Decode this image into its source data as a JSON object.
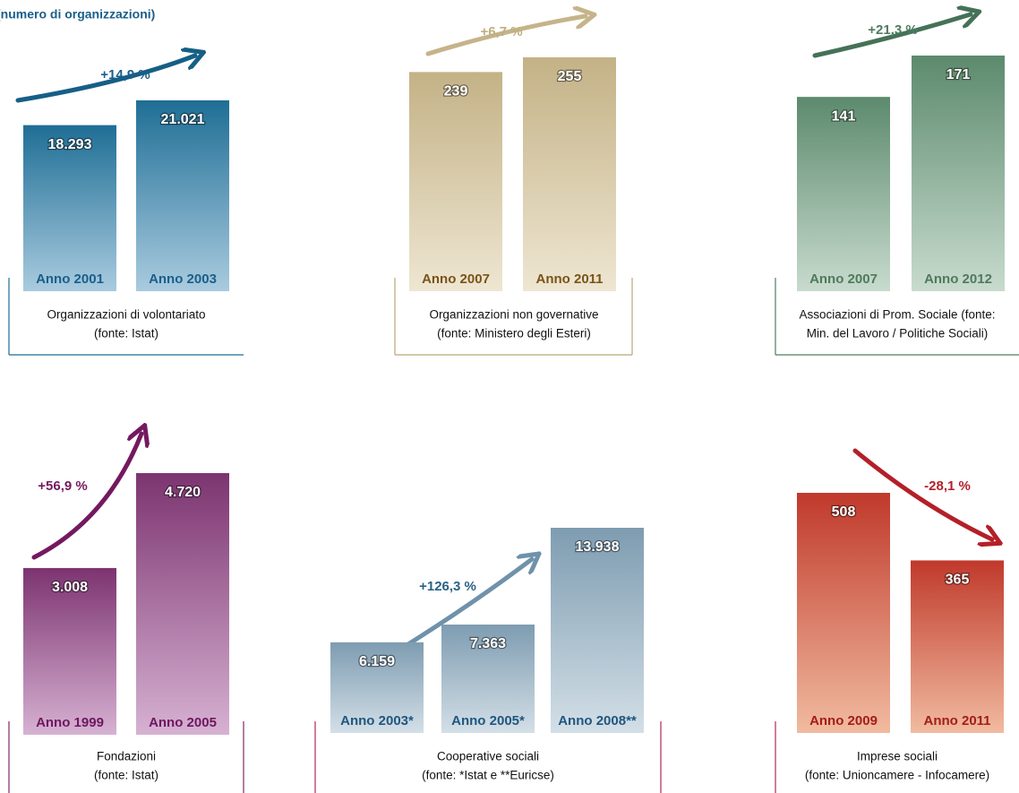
{
  "subtitle": "(numero di organizzazioni)",
  "chart_data": [
    {
      "type": "bar",
      "categories": [
        "Anno 2001",
        "Anno 2003"
      ],
      "values": [
        18293,
        21021
      ],
      "value_labels": [
        "18.293",
        "21.021"
      ],
      "change": "+14,9 %",
      "caption": [
        "Organizzazioni di volontariato",
        "(fonte: Istat)"
      ]
    },
    {
      "type": "bar",
      "categories": [
        "Anno 2007",
        "Anno 2011"
      ],
      "values": [
        239,
        255
      ],
      "change": "+6,7 %",
      "caption": [
        "Organizzazioni non governative",
        "(fonte: Ministero degli Esteri)"
      ]
    },
    {
      "type": "bar",
      "categories": [
        "Anno 2007",
        "Anno 2012"
      ],
      "values": [
        141,
        171
      ],
      "change": "+21,3 %",
      "caption": [
        "Associazioni di Prom. Sociale (fonte:",
        "Min. del Lavoro / Politiche Sociali)"
      ]
    },
    {
      "type": "bar",
      "categories": [
        "Anno 1999",
        "Anno 2005"
      ],
      "values": [
        3008,
        4720
      ],
      "value_labels": [
        "3.008",
        "4.720"
      ],
      "change": "+56,9 %",
      "caption": [
        "Fondazioni",
        "(fonte: Istat)"
      ]
    },
    {
      "type": "bar",
      "categories": [
        "Anno 2003*",
        "Anno 2005*",
        "Anno 2008**"
      ],
      "values": [
        6159,
        7363,
        13938
      ],
      "value_labels": [
        "6.159",
        "7.363",
        "13.938"
      ],
      "change": "+126,3 %",
      "caption": [
        "Cooperative sociali",
        "(fonte: *Istat e **Euricse)"
      ]
    },
    {
      "type": "bar",
      "categories": [
        "Anno 2009",
        "Anno 2011"
      ],
      "values": [
        508,
        365
      ],
      "change": "-28,1 %",
      "caption": [
        "Imprese sociali",
        "(fonte: Unioncamere - Infocamere)"
      ]
    }
  ]
}
